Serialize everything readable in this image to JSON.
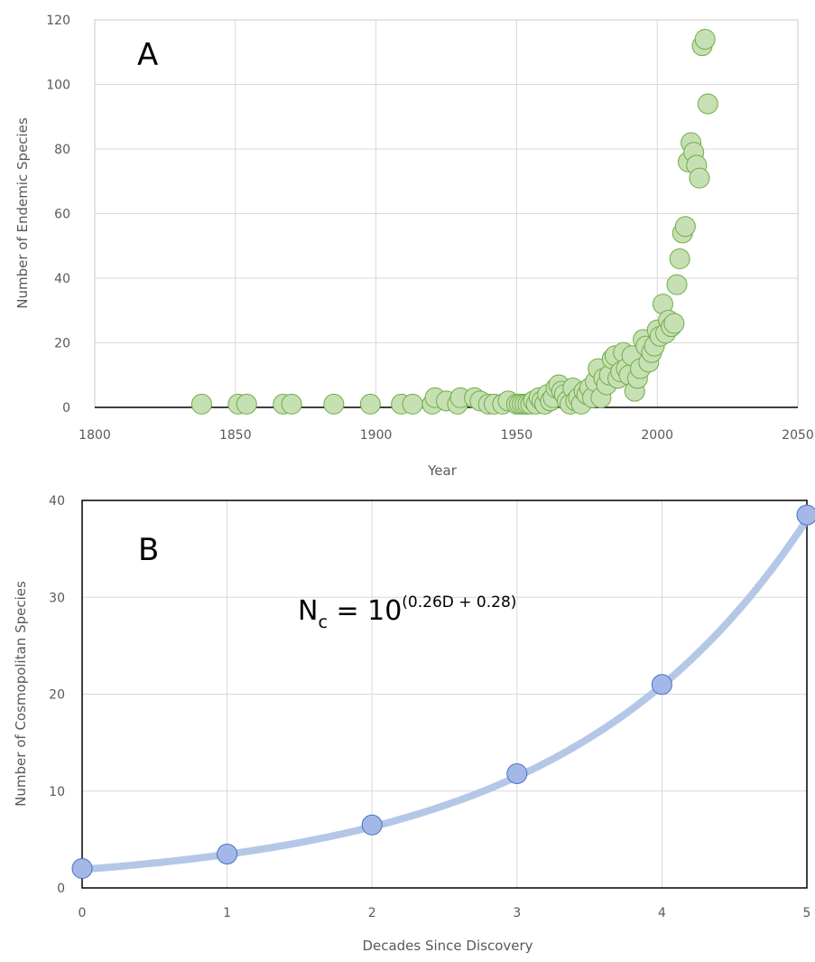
{
  "chart_data": [
    {
      "type": "scatter",
      "panel_label": "A",
      "xlabel": "Year",
      "ylabel": "Number  of Endemic Species",
      "xlim": [
        1800,
        2050
      ],
      "ylim": [
        0,
        120
      ],
      "x_ticks": [
        1800,
        1850,
        1900,
        1950,
        2000,
        2050
      ],
      "y_ticks": [
        0,
        20,
        40,
        60,
        80,
        100,
        120
      ],
      "grid": true,
      "color": "#c6e0b4",
      "edge_color": "#70ad47",
      "points": [
        [
          1838,
          1
        ],
        [
          1851,
          1
        ],
        [
          1854,
          1
        ],
        [
          1867,
          1
        ],
        [
          1870,
          1
        ],
        [
          1885,
          1
        ],
        [
          1898,
          1
        ],
        [
          1909,
          1
        ],
        [
          1913,
          1
        ],
        [
          1920,
          1
        ],
        [
          1921,
          3
        ],
        [
          1925,
          2
        ],
        [
          1929,
          1
        ],
        [
          1930,
          3
        ],
        [
          1935,
          3
        ],
        [
          1937,
          2
        ],
        [
          1940,
          1
        ],
        [
          1942,
          1
        ],
        [
          1945,
          1
        ],
        [
          1947,
          2
        ],
        [
          1950,
          1
        ],
        [
          1951,
          1
        ],
        [
          1952,
          1
        ],
        [
          1953,
          1
        ],
        [
          1954,
          1
        ],
        [
          1955,
          1
        ],
        [
          1956,
          2
        ],
        [
          1957,
          1
        ],
        [
          1958,
          3
        ],
        [
          1959,
          2
        ],
        [
          1960,
          1
        ],
        [
          1961,
          4
        ],
        [
          1962,
          2
        ],
        [
          1963,
          3
        ],
        [
          1964,
          6
        ],
        [
          1965,
          7
        ],
        [
          1966,
          5
        ],
        [
          1967,
          4
        ],
        [
          1968,
          2
        ],
        [
          1969,
          1
        ],
        [
          1970,
          6
        ],
        [
          1971,
          2
        ],
        [
          1972,
          3
        ],
        [
          1973,
          1
        ],
        [
          1974,
          5
        ],
        [
          1975,
          4
        ],
        [
          1976,
          6
        ],
        [
          1977,
          3
        ],
        [
          1978,
          8
        ],
        [
          1979,
          12
        ],
        [
          1980,
          3
        ],
        [
          1981,
          9
        ],
        [
          1982,
          7
        ],
        [
          1983,
          10
        ],
        [
          1984,
          15
        ],
        [
          1985,
          16
        ],
        [
          1986,
          9
        ],
        [
          1987,
          11
        ],
        [
          1988,
          17
        ],
        [
          1989,
          12
        ],
        [
          1990,
          10
        ],
        [
          1991,
          16
        ],
        [
          1992,
          5
        ],
        [
          1993,
          9
        ],
        [
          1994,
          12
        ],
        [
          1995,
          21
        ],
        [
          1996,
          19
        ],
        [
          1997,
          14
        ],
        [
          1998,
          17
        ],
        [
          1999,
          19
        ],
        [
          2000,
          24
        ],
        [
          2001,
          22
        ],
        [
          2002,
          32
        ],
        [
          2003,
          23
        ],
        [
          2004,
          27
        ],
        [
          2005,
          25
        ],
        [
          2006,
          26
        ],
        [
          2007,
          38
        ],
        [
          2008,
          46
        ],
        [
          2009,
          54
        ],
        [
          2010,
          56
        ],
        [
          2011,
          76
        ],
        [
          2012,
          82
        ],
        [
          2013,
          79
        ],
        [
          2014,
          75
        ],
        [
          2015,
          71
        ],
        [
          2016,
          112
        ],
        [
          2017,
          114
        ],
        [
          2018,
          94
        ]
      ]
    },
    {
      "type": "line",
      "panel_label": "B",
      "xlabel": "Decades Since Discovery",
      "ylabel": "Number  of Cosmopolitan Species",
      "xlim": [
        0,
        5
      ],
      "ylim": [
        0,
        40
      ],
      "x_ticks": [
        0,
        1,
        2,
        3,
        4,
        5
      ],
      "y_ticks": [
        0,
        10,
        20,
        30,
        40
      ],
      "grid": true,
      "series": [
        {
          "x": [
            0,
            1,
            2,
            3,
            4,
            5
          ],
          "values": [
            2,
            3.5,
            6.5,
            11.8,
            21,
            38.5
          ],
          "marker_color": "#a4b8e8",
          "marker_edge": "#4472c4"
        }
      ],
      "fit": {
        "formula": "N_c = 10^(0.26D + 0.28)",
        "slope": 0.26,
        "intercept": 0.28,
        "line_color": "#b4c7e7"
      },
      "annotation": {
        "base": "N",
        "sub": "c",
        "eq": " = 10",
        "exponent": "(0.26D + 0.28)"
      }
    }
  ]
}
